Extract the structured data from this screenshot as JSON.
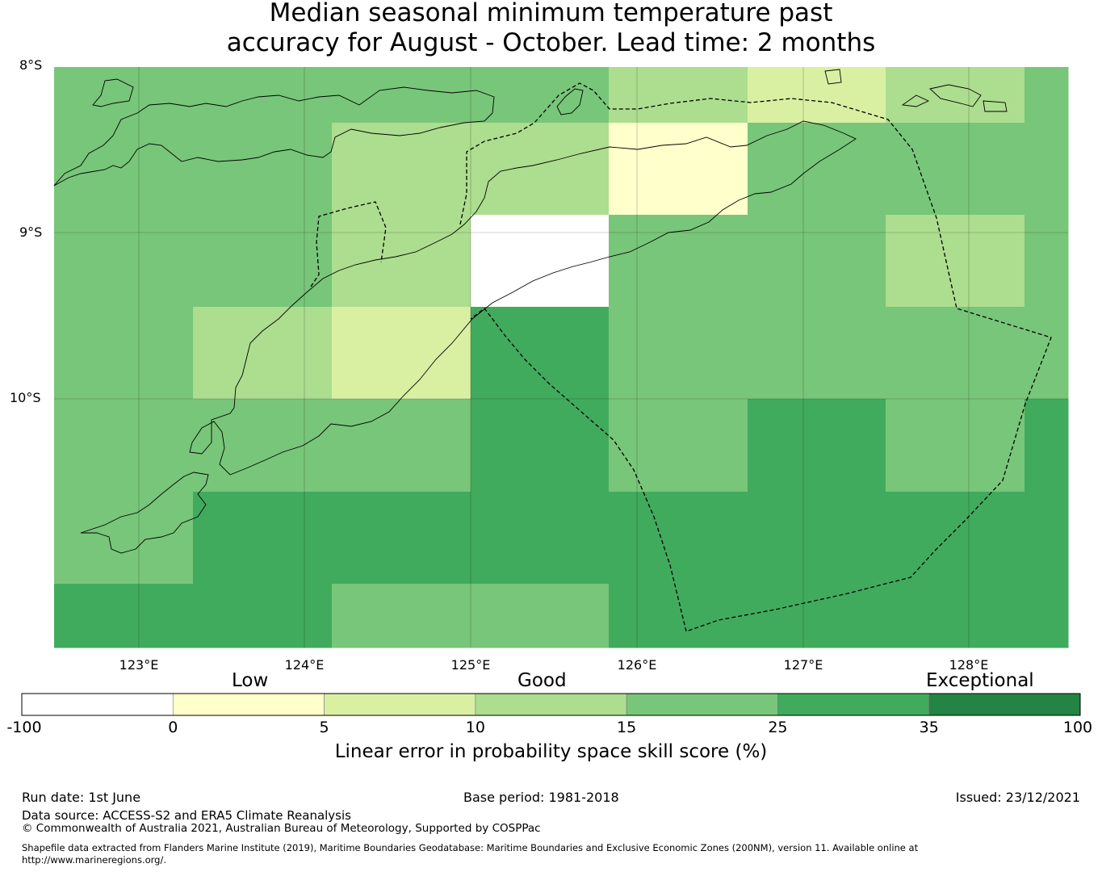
{
  "title_line1": "Median seasonal minimum temperature past",
  "title_line2": "accuracy for August - October. Lead time: 2 months",
  "map": {
    "lat_labels": [
      "8°S",
      "9°S",
      "10°S"
    ],
    "lon_labels": [
      "123°E",
      "124°E",
      "125°E",
      "126°E",
      "127°E",
      "128°E"
    ],
    "category_labels": [
      "Low",
      "Good",
      "Exceptional"
    ],
    "skill_grid": {
      "columns_lon": [
        122.8,
        123.6,
        124.5,
        125.3,
        126.2,
        127.0,
        127.8,
        128.5
      ],
      "rows_lat": [
        8.2,
        8.8,
        9.3,
        9.9,
        10.4,
        11.0,
        11.4
      ],
      "values": [
        [
          20,
          20,
          20,
          20,
          12,
          7,
          12,
          20
        ],
        [
          20,
          20,
          12,
          12,
          2,
          20,
          20,
          20
        ],
        [
          20,
          20,
          12,
          -50,
          20,
          20,
          12,
          20
        ],
        [
          20,
          12,
          7,
          30,
          20,
          20,
          20,
          20
        ],
        [
          20,
          20,
          20,
          30,
          20,
          30,
          20,
          30
        ],
        [
          20,
          30,
          30,
          30,
          30,
          30,
          30,
          30
        ],
        [
          30,
          30,
          20,
          20,
          30,
          30,
          30,
          30
        ]
      ]
    }
  },
  "colorbar": {
    "ticks": [
      "-100",
      "0",
      "5",
      "10",
      "15",
      "25",
      "35",
      "100"
    ],
    "colors": [
      "#ffffff",
      "#ffffcc",
      "#d9f0a3",
      "#addd8e",
      "#78c679",
      "#41ab5d",
      "#238443"
    ],
    "caption": "Linear error in probability space skill score (%)"
  },
  "footer": {
    "run_date": "Run date: 1st June",
    "base_period": "Base period: 1981-2018",
    "issued": "Issued: 23/12/2021",
    "data_source": "Data source: ACCESS-S2 and ERA5 Climate Reanalysis",
    "copyright": "© Commonwealth of Australia 2021, Australian Bureau of Meteorology, Supported by COSPPac",
    "shapefile_line1": "Shapefile data extracted from Flanders Marine Institute (2019), Maritime Boundaries Geodatabase: Maritime Boundaries and Exclusive Economic Zones (200NM), version 11. Available online at",
    "shapefile_line2": "http://www.marineregions.org/."
  }
}
